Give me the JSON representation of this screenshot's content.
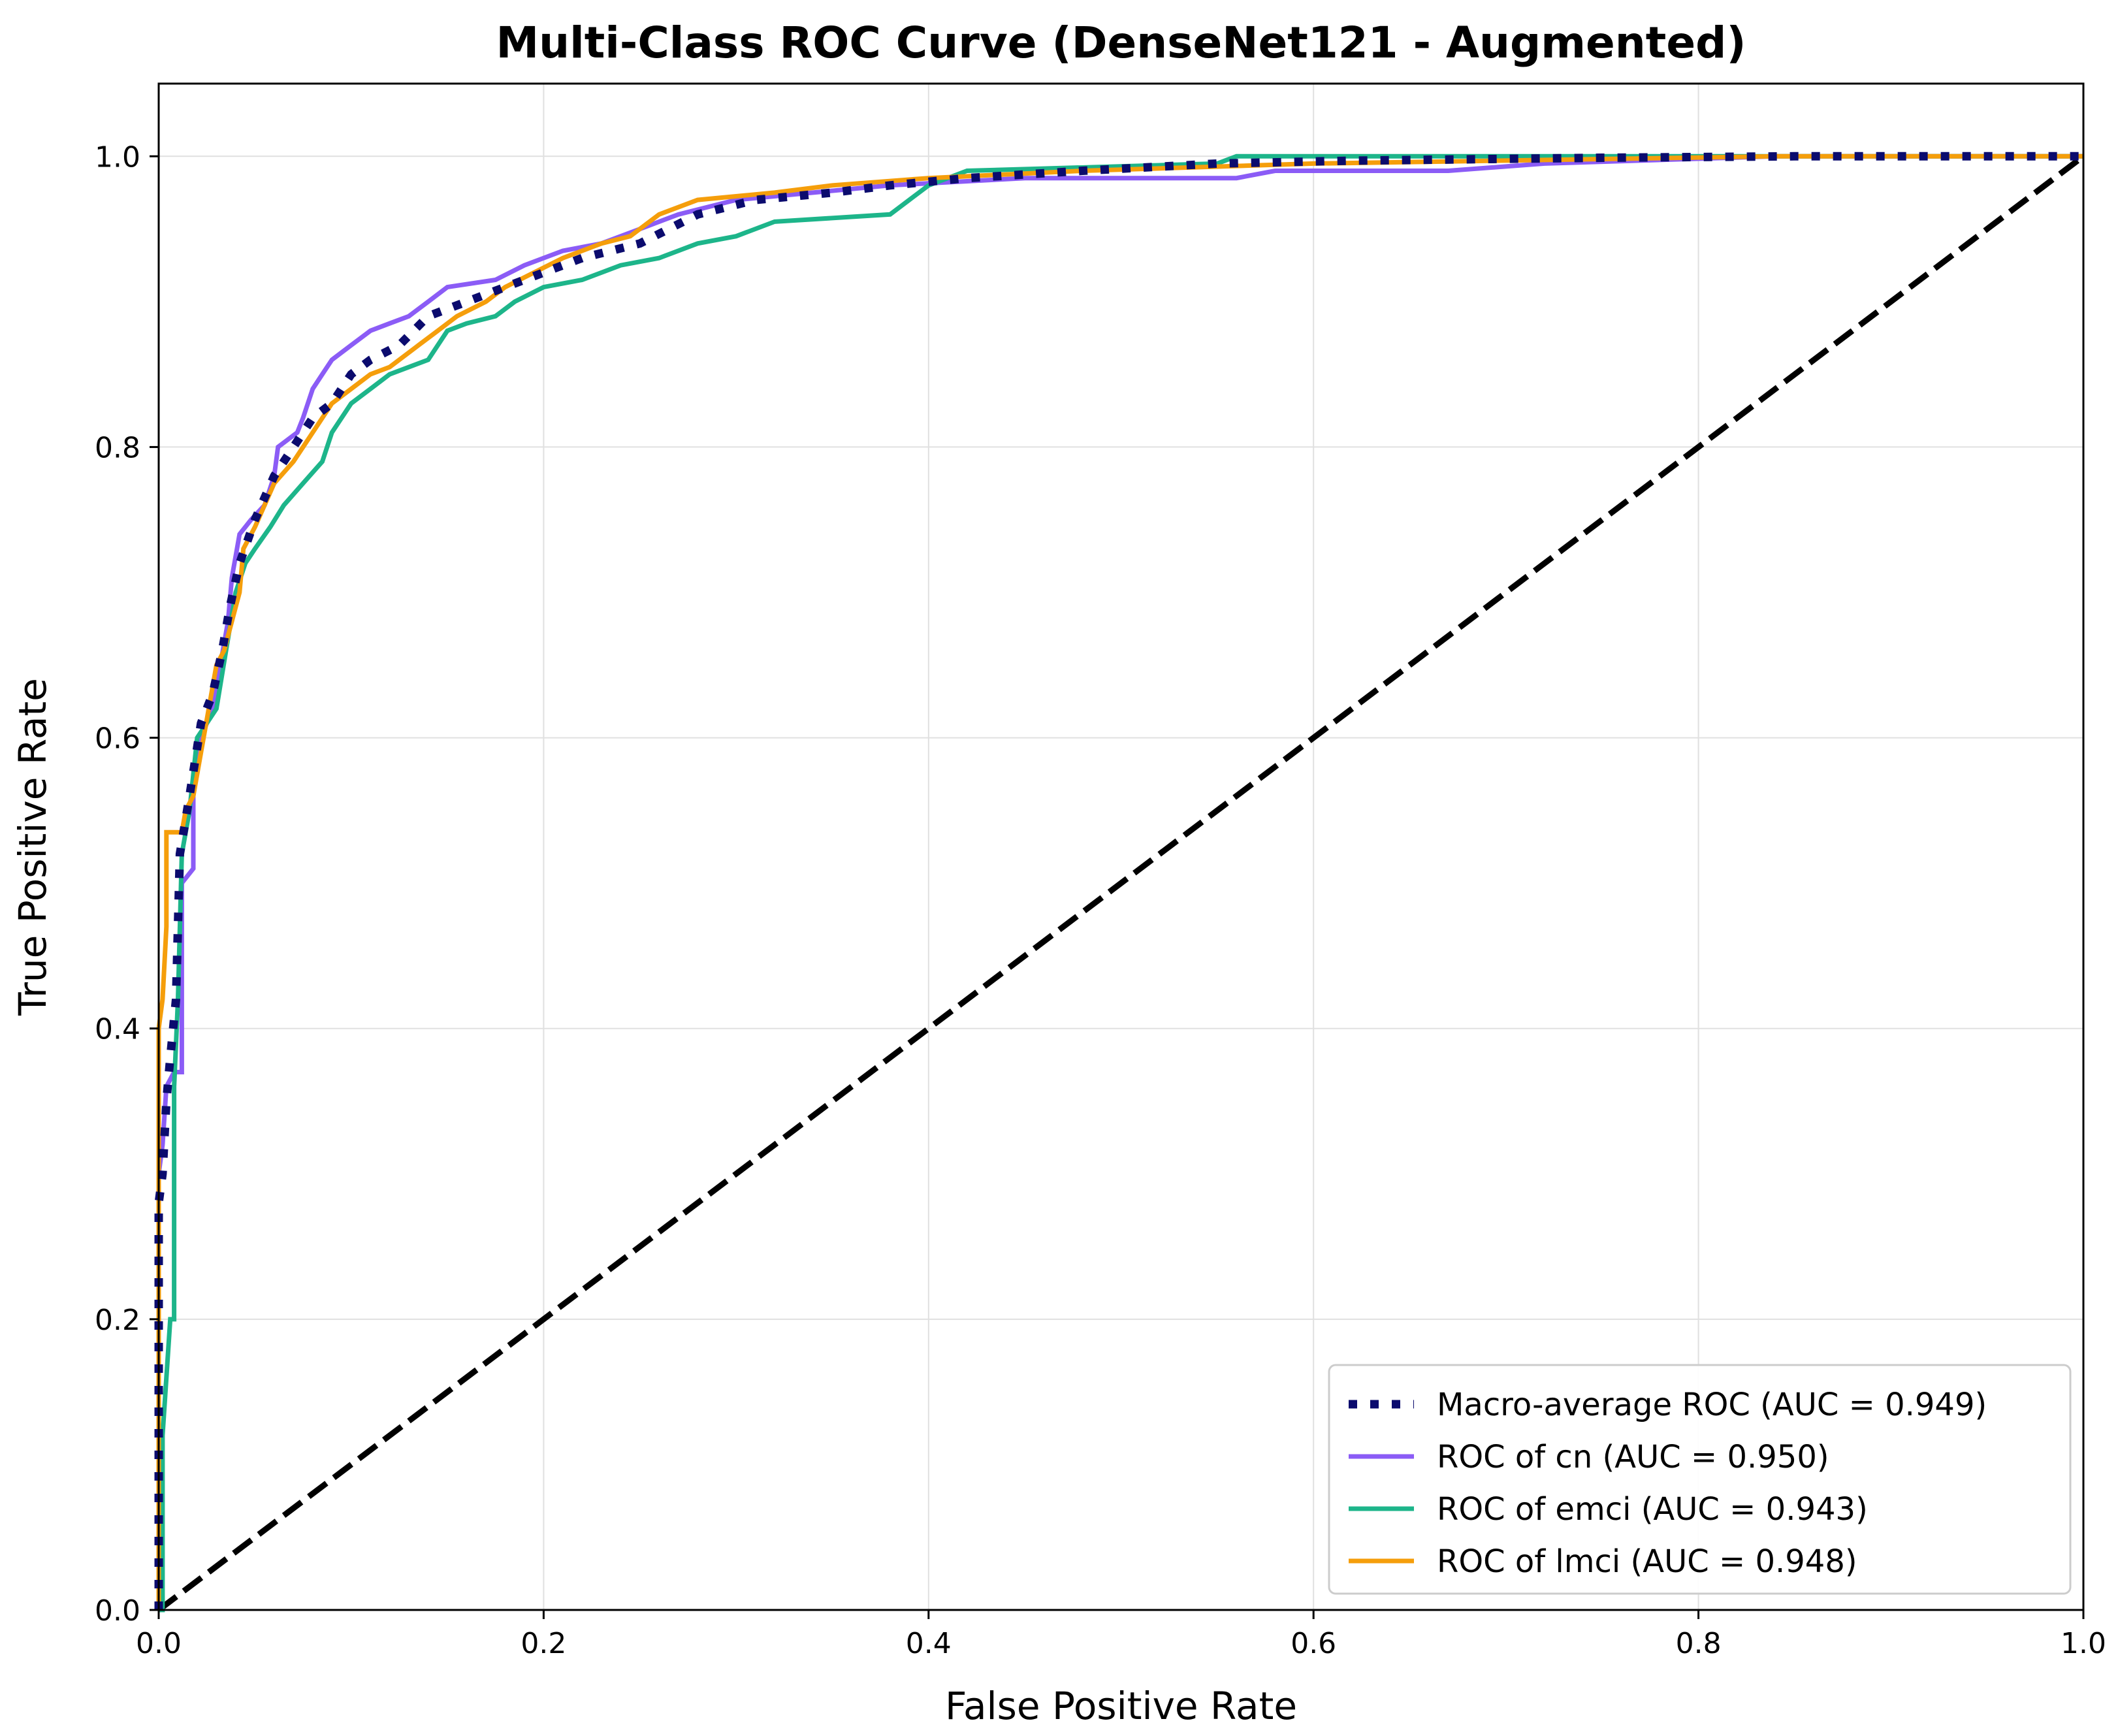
{
  "chart_data": {
    "type": "line",
    "title": "Multi-Class ROC Curve (DenseNet121 - Augmented)",
    "xlabel": "False Positive Rate",
    "ylabel": "True Positive Rate",
    "xlim": [
      0.0,
      1.0
    ],
    "ylim": [
      0.0,
      1.05
    ],
    "xticks": [
      "0.0",
      "0.2",
      "0.4",
      "0.6",
      "0.8",
      "1.0"
    ],
    "yticks": [
      "0.0",
      "0.2",
      "0.4",
      "0.6",
      "0.8",
      "1.0"
    ],
    "grid": true,
    "legend_position": "lower-right",
    "series": [
      {
        "name": "Macro-average ROC (AUC = 0.949)",
        "color": "#0b0b6e",
        "style": "dotted",
        "points": [
          [
            0,
            0
          ],
          [
            0,
            0.28
          ],
          [
            0.002,
            0.3
          ],
          [
            0.004,
            0.35
          ],
          [
            0.006,
            0.38
          ],
          [
            0.009,
            0.42
          ],
          [
            0.011,
            0.52
          ],
          [
            0.016,
            0.56
          ],
          [
            0.022,
            0.61
          ],
          [
            0.028,
            0.63
          ],
          [
            0.033,
            0.66
          ],
          [
            0.037,
            0.69
          ],
          [
            0.042,
            0.72
          ],
          [
            0.05,
            0.75
          ],
          [
            0.06,
            0.78
          ],
          [
            0.07,
            0.8
          ],
          [
            0.08,
            0.82
          ],
          [
            0.09,
            0.83
          ],
          [
            0.1,
            0.85
          ],
          [
            0.11,
            0.86
          ],
          [
            0.125,
            0.87
          ],
          [
            0.14,
            0.89
          ],
          [
            0.16,
            0.9
          ],
          [
            0.18,
            0.91
          ],
          [
            0.2,
            0.92
          ],
          [
            0.22,
            0.93
          ],
          [
            0.25,
            0.94
          ],
          [
            0.28,
            0.96
          ],
          [
            0.31,
            0.97
          ],
          [
            0.35,
            0.975
          ],
          [
            0.38,
            0.98
          ],
          [
            0.42,
            0.985
          ],
          [
            0.48,
            0.99
          ],
          [
            0.55,
            0.995
          ],
          [
            0.62,
            0.997
          ],
          [
            0.75,
            0.999
          ],
          [
            0.85,
            1.0
          ],
          [
            1.0,
            1.0
          ]
        ]
      },
      {
        "name": "ROC of cn (AUC = 0.950)",
        "color": "#8b5cf6",
        "style": "solid",
        "points": [
          [
            0,
            0
          ],
          [
            0,
            0.3
          ],
          [
            0.002,
            0.32
          ],
          [
            0.004,
            0.36
          ],
          [
            0.008,
            0.37
          ],
          [
            0.012,
            0.37
          ],
          [
            0.012,
            0.5
          ],
          [
            0.018,
            0.51
          ],
          [
            0.018,
            0.56
          ],
          [
            0.022,
            0.6
          ],
          [
            0.028,
            0.62
          ],
          [
            0.032,
            0.65
          ],
          [
            0.036,
            0.68
          ],
          [
            0.038,
            0.71
          ],
          [
            0.042,
            0.74
          ],
          [
            0.048,
            0.75
          ],
          [
            0.055,
            0.76
          ],
          [
            0.06,
            0.78
          ],
          [
            0.062,
            0.8
          ],
          [
            0.072,
            0.81
          ],
          [
            0.075,
            0.82
          ],
          [
            0.08,
            0.84
          ],
          [
            0.085,
            0.85
          ],
          [
            0.09,
            0.86
          ],
          [
            0.1,
            0.87
          ],
          [
            0.11,
            0.88
          ],
          [
            0.12,
            0.885
          ],
          [
            0.13,
            0.89
          ],
          [
            0.14,
            0.9
          ],
          [
            0.15,
            0.91
          ],
          [
            0.175,
            0.915
          ],
          [
            0.19,
            0.925
          ],
          [
            0.21,
            0.935
          ],
          [
            0.23,
            0.94
          ],
          [
            0.25,
            0.95
          ],
          [
            0.27,
            0.96
          ],
          [
            0.3,
            0.97
          ],
          [
            0.34,
            0.975
          ],
          [
            0.38,
            0.98
          ],
          [
            0.45,
            0.985
          ],
          [
            0.48,
            0.985
          ],
          [
            0.56,
            0.985
          ],
          [
            0.58,
            0.99
          ],
          [
            0.67,
            0.99
          ],
          [
            0.72,
            0.995
          ],
          [
            0.84,
            1.0
          ],
          [
            1.0,
            1.0
          ]
        ]
      },
      {
        "name": "ROC of emci (AUC = 0.943)",
        "color": "#1db58a",
        "style": "solid",
        "points": [
          [
            0,
            0
          ],
          [
            0.002,
            0.0
          ],
          [
            0.002,
            0.12
          ],
          [
            0.004,
            0.16
          ],
          [
            0.006,
            0.2
          ],
          [
            0.008,
            0.2
          ],
          [
            0.008,
            0.36
          ],
          [
            0.01,
            0.42
          ],
          [
            0.012,
            0.52
          ],
          [
            0.016,
            0.55
          ],
          [
            0.02,
            0.6
          ],
          [
            0.025,
            0.61
          ],
          [
            0.03,
            0.62
          ],
          [
            0.035,
            0.66
          ],
          [
            0.04,
            0.7
          ],
          [
            0.045,
            0.72
          ],
          [
            0.05,
            0.73
          ],
          [
            0.058,
            0.745
          ],
          [
            0.065,
            0.76
          ],
          [
            0.075,
            0.775
          ],
          [
            0.085,
            0.79
          ],
          [
            0.09,
            0.81
          ],
          [
            0.1,
            0.83
          ],
          [
            0.11,
            0.84
          ],
          [
            0.12,
            0.85
          ],
          [
            0.14,
            0.86
          ],
          [
            0.15,
            0.88
          ],
          [
            0.16,
            0.885
          ],
          [
            0.175,
            0.89
          ],
          [
            0.185,
            0.9
          ],
          [
            0.2,
            0.91
          ],
          [
            0.22,
            0.915
          ],
          [
            0.24,
            0.925
          ],
          [
            0.26,
            0.93
          ],
          [
            0.28,
            0.94
          ],
          [
            0.3,
            0.945
          ],
          [
            0.32,
            0.955
          ],
          [
            0.38,
            0.96
          ],
          [
            0.39,
            0.97
          ],
          [
            0.4,
            0.98
          ],
          [
            0.42,
            0.99
          ],
          [
            0.55,
            0.995
          ],
          [
            0.56,
            1.0
          ],
          [
            1.0,
            1.0
          ]
        ]
      },
      {
        "name": "ROC of lmci (AUC = 0.948)",
        "color": "#f59e0b",
        "style": "solid",
        "points": [
          [
            0,
            0
          ],
          [
            0,
            0.4
          ],
          [
            0.002,
            0.42
          ],
          [
            0.004,
            0.47
          ],
          [
            0.004,
            0.535
          ],
          [
            0.012,
            0.535
          ],
          [
            0.014,
            0.55
          ],
          [
            0.018,
            0.56
          ],
          [
            0.022,
            0.59
          ],
          [
            0.026,
            0.62
          ],
          [
            0.03,
            0.65
          ],
          [
            0.034,
            0.66
          ],
          [
            0.038,
            0.68
          ],
          [
            0.042,
            0.7
          ],
          [
            0.044,
            0.73
          ],
          [
            0.05,
            0.745
          ],
          [
            0.055,
            0.76
          ],
          [
            0.06,
            0.775
          ],
          [
            0.07,
            0.79
          ],
          [
            0.08,
            0.81
          ],
          [
            0.09,
            0.83
          ],
          [
            0.1,
            0.84
          ],
          [
            0.11,
            0.85
          ],
          [
            0.12,
            0.855
          ],
          [
            0.135,
            0.87
          ],
          [
            0.145,
            0.88
          ],
          [
            0.155,
            0.89
          ],
          [
            0.17,
            0.9
          ],
          [
            0.18,
            0.91
          ],
          [
            0.195,
            0.92
          ],
          [
            0.21,
            0.93
          ],
          [
            0.23,
            0.94
          ],
          [
            0.245,
            0.945
          ],
          [
            0.26,
            0.96
          ],
          [
            0.28,
            0.97
          ],
          [
            0.32,
            0.975
          ],
          [
            0.35,
            0.98
          ],
          [
            0.4,
            0.985
          ],
          [
            0.48,
            0.99
          ],
          [
            0.6,
            0.995
          ],
          [
            0.84,
            1.0
          ],
          [
            1.0,
            1.0
          ]
        ]
      },
      {
        "name": "",
        "color": "#000000",
        "style": "dashed",
        "points": [
          [
            0,
            0
          ],
          [
            1,
            1
          ]
        ]
      }
    ]
  }
}
